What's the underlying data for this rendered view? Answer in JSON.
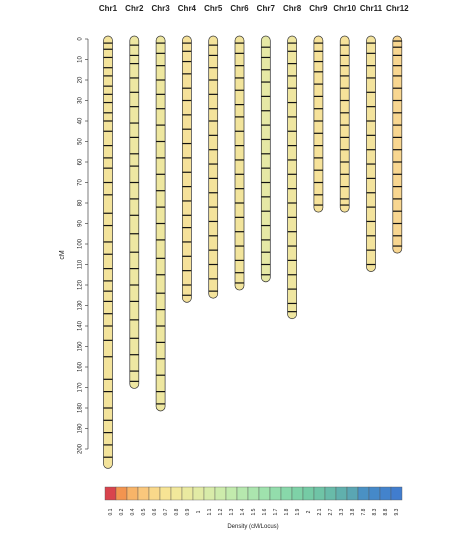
{
  "chart_data": {
    "type": "chromosome-map",
    "ylabel": "cM",
    "categories": [
      "Chr1",
      "Chr2",
      "Chr3",
      "Chr4",
      "Chr5",
      "Chr6",
      "Chr7",
      "Chr8",
      "Chr9",
      "Chr10",
      "Chr11",
      "Chr12"
    ],
    "values": [
      208,
      169,
      180,
      127,
      125,
      121,
      117,
      135,
      83,
      83,
      112,
      103
    ],
    "colors": [
      "#f3e39b",
      "#eee7a2",
      "#eee7a0",
      "#f5e19a",
      "#f4e39b",
      "#f2e49c",
      "#e6e8a5",
      "#efe6a0",
      "#f6e29a",
      "#f6e29a",
      "#f3e39d",
      "#f8d690"
    ],
    "markers": [
      [
        2,
        5,
        9,
        14,
        18,
        23,
        27,
        31,
        36,
        40,
        45,
        52,
        58,
        63,
        70,
        76,
        85,
        91,
        99,
        105,
        112,
        118,
        123,
        128,
        134,
        140,
        147,
        155,
        166,
        172,
        180,
        186,
        192,
        198,
        204
      ],
      [
        3,
        8,
        12,
        19,
        26,
        33,
        41,
        48,
        56,
        62,
        70,
        78,
        86,
        95,
        104,
        112,
        120,
        128,
        137,
        146,
        154,
        162,
        167
      ],
      [
        2,
        7,
        13,
        20,
        27,
        34,
        42,
        50,
        58,
        66,
        74,
        82,
        90,
        98,
        107,
        115,
        124,
        132,
        140,
        148,
        156,
        164,
        172,
        178
      ],
      [
        2,
        6,
        11,
        17,
        24,
        30,
        37,
        44,
        51,
        58,
        65,
        72,
        79,
        86,
        92,
        99,
        106,
        113,
        120,
        125
      ],
      [
        3,
        8,
        14,
        20,
        27,
        34,
        40,
        47,
        54,
        61,
        68,
        75,
        82,
        89,
        96,
        103,
        110,
        117,
        123
      ],
      [
        2,
        7,
        13,
        19,
        25,
        32,
        38,
        45,
        52,
        59,
        66,
        73,
        80,
        87,
        94,
        101,
        108,
        114,
        119
      ],
      [
        4,
        9,
        15,
        21,
        28,
        35,
        42,
        49,
        56,
        63,
        70,
        77,
        84,
        91,
        98,
        104,
        110,
        115
      ],
      [
        2,
        6,
        12,
        18,
        24,
        31,
        38,
        45,
        52,
        59,
        66,
        73,
        80,
        87,
        94,
        101,
        108,
        115,
        122,
        129,
        133
      ],
      [
        2,
        6,
        11,
        16,
        22,
        28,
        34,
        40,
        46,
        52,
        58,
        64,
        70,
        76,
        81
      ],
      [
        3,
        8,
        13,
        18,
        24,
        30,
        36,
        42,
        48,
        54,
        60,
        66,
        72,
        78,
        81
      ],
      [
        2,
        7,
        13,
        19,
        26,
        33,
        40,
        47,
        54,
        61,
        68,
        75,
        82,
        89,
        96,
        103,
        110
      ],
      [
        1,
        4,
        8,
        13,
        18,
        24,
        30,
        36,
        42,
        48,
        54,
        60,
        66,
        72,
        78,
        84,
        90,
        96,
        101
      ]
    ],
    "ylim": [
      0,
      210
    ],
    "yticks": [
      0,
      10,
      20,
      30,
      40,
      50,
      60,
      70,
      80,
      90,
      100,
      110,
      120,
      130,
      140,
      150,
      160,
      170,
      180,
      190,
      200
    ],
    "legend": {
      "title": "Density (cM/Locus)",
      "labels": [
        "0.1",
        "0.2",
        "0.4",
        "0.5",
        "0.6",
        "0.7",
        "0.8",
        "0.9",
        "1",
        "1.1",
        "1.2",
        "1.3",
        "1.4",
        "1.5",
        "1.6",
        "1.7",
        "1.8",
        "1.9",
        "2",
        "2.1",
        "2.7",
        "3.3",
        "3.8",
        "7.8",
        "8.3",
        "8.8",
        "9.3"
      ],
      "colors": [
        "#d9434d",
        "#f3944f",
        "#f8b468",
        "#fac77c",
        "#f9d88a",
        "#f7e494",
        "#f2e89b",
        "#eaeaa0",
        "#e2eba5",
        "#d8eca9",
        "#cdecab",
        "#c2ebad",
        "#b6e8ae",
        "#abe5ae",
        "#9fe2ad",
        "#93ddac",
        "#88d8aa",
        "#7ed2a7",
        "#75cba5",
        "#6fc4a6",
        "#68bba9",
        "#60b0ad",
        "#5aa6b3",
        "#4a91c4",
        "#4589c9",
        "#4383cc",
        "#417dce"
      ]
    }
  }
}
